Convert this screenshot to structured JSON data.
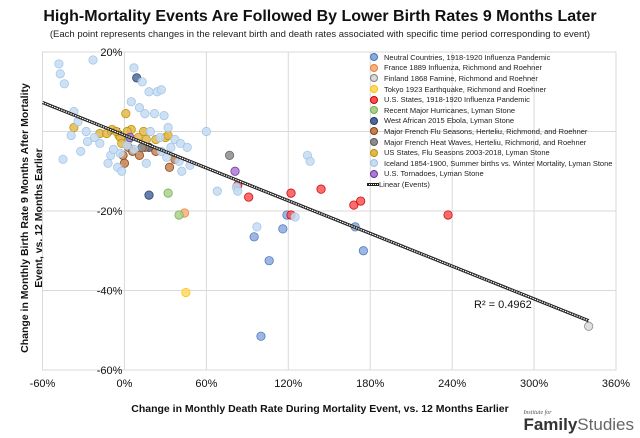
{
  "chart_data": {
    "type": "scatter",
    "title": "High-Mortality Events Are Followed By Lower Birth Rates 9 Months Later",
    "subtitle": "(Each point represents changes in the relevant birth and death rates associated with specific time period corresponding to  event)",
    "xlabel": "Change in Monthly Death Rate During Mortality Event, vs. 12 Months Earlier",
    "ylabel": "Change in Monthly Birth Rate 9 Months After Mortality Event, vs. 12 Months Earlier",
    "xlim": [
      -60,
      360
    ],
    "ylim": [
      -60,
      20
    ],
    "x_ticks": [
      "-60%",
      "0%",
      "60%",
      "120%",
      "180%",
      "240%",
      "300%",
      "360%"
    ],
    "x_tick_values": [
      -60,
      0,
      60,
      120,
      180,
      240,
      300,
      360
    ],
    "y_ticks": [
      "20%",
      "0%",
      "-20%",
      "-40%",
      "-60%"
    ],
    "y_tick_values": [
      20,
      0,
      -20,
      -40,
      -60
    ],
    "grid": true,
    "legend_position": "top-right",
    "trendline": {
      "label": "Linear (Events)",
      "x": [
        -60,
        340
      ],
      "y": [
        7.3,
        -47.6
      ],
      "r_squared_label": "R² = 0.4962"
    },
    "series": [
      {
        "name": "Neutral Countries, 1918-1920 Influenza Pandemic",
        "color": "#4472c4",
        "fill": "#8eaadb",
        "points": [
          [
            100,
            -51.5
          ],
          [
            106,
            -32.5
          ],
          [
            95,
            -26.5
          ],
          [
            116,
            -24.5
          ],
          [
            119,
            -21
          ],
          [
            169,
            -24
          ],
          [
            175,
            -30
          ]
        ]
      },
      {
        "name": "France 1889 Influenza, Richmond and Roehner",
        "color": "#ed7d31",
        "fill": "#f4b183",
        "points": [
          [
            44,
            -20.5
          ]
        ]
      },
      {
        "name": "Finland 1868 Famine, Richmond and Roehner",
        "color": "#7f7f7f",
        "fill": "#d9d9d9",
        "points": [
          [
            340,
            -49
          ]
        ]
      },
      {
        "name": "Tokyo 1923 Earthquake, Richmond and Roehner",
        "color": "#ffc000",
        "fill": "#ffd966",
        "points": [
          [
            45,
            -40.5
          ]
        ]
      },
      {
        "name": "U.S. States, 1918-1920 Influenza Pandemic",
        "color": "#c00000",
        "fill": "#ff5050",
        "points": [
          [
            83,
            -13.5
          ],
          [
            91,
            -16.5
          ],
          [
            122,
            -15.5
          ],
          [
            122,
            -21
          ],
          [
            144,
            -14.5
          ],
          [
            168,
            -18.5
          ],
          [
            173,
            -17.5
          ],
          [
            237,
            -21
          ]
        ]
      },
      {
        "name": "Recent Major Hurricanes, Lyman Stone",
        "color": "#70ad47",
        "fill": "#a9d18e",
        "points": [
          [
            32,
            -15.5
          ],
          [
            40,
            -21
          ],
          [
            3,
            -2
          ]
        ]
      },
      {
        "name": "West African 2015 Ebola, Lyman Stone",
        "color": "#1f3864",
        "fill": "#4a6a9a",
        "points": [
          [
            9,
            13.5
          ],
          [
            18,
            -16
          ],
          [
            18,
            -4
          ]
        ]
      },
      {
        "name": "Major French Flu Seasons, Herteliu, Richmond, and Roehner",
        "color": "#843c0c",
        "fill": "#c5804f",
        "points": [
          [
            3,
            -4
          ],
          [
            6,
            -5
          ],
          [
            11,
            -6
          ],
          [
            -1,
            -6
          ],
          [
            15,
            -4
          ],
          [
            23,
            -5
          ],
          [
            37,
            -7
          ],
          [
            33,
            -9
          ],
          [
            0,
            -8
          ]
        ]
      },
      {
        "name": "Major French Heat Waves, Herteliu, Richmond, and Roehner",
        "color": "#595959",
        "fill": "#8c8c8c",
        "points": [
          [
            13,
            -4
          ],
          [
            77,
            -6
          ]
        ]
      },
      {
        "name": "US States, Flu Seasons 2003-2018, Lyman Stone",
        "color": "#bf9000",
        "fill": "#e2b84b",
        "points": [
          [
            1,
            4.5
          ],
          [
            -37,
            1
          ],
          [
            -18,
            -0.5
          ],
          [
            -9,
            0.5
          ],
          [
            -13,
            -0.5
          ],
          [
            -4,
            -1
          ],
          [
            -3,
            -1.5
          ],
          [
            5,
            0.5
          ],
          [
            14,
            0
          ],
          [
            10,
            -1.5
          ],
          [
            16,
            -2
          ],
          [
            23,
            -2
          ],
          [
            30,
            -1.5
          ],
          [
            2,
            0
          ],
          [
            -6,
            0
          ],
          [
            32,
            -1
          ],
          [
            -2,
            -3
          ]
        ]
      },
      {
        "name": "Iceland 1854-1900, Summer births vs. Winter Mortality, Lyman Stone",
        "color": "#9dc3e6",
        "fill": "#c5dcf2",
        "points": [
          [
            -48,
            17
          ],
          [
            -47,
            14.5
          ],
          [
            -44,
            12
          ],
          [
            -34,
            2.5
          ],
          [
            -23,
            18
          ],
          [
            -37,
            5
          ],
          [
            -28,
            0
          ],
          [
            -27,
            -2.5
          ],
          [
            -39,
            -1
          ],
          [
            -32,
            -5
          ],
          [
            -22,
            -1.5
          ],
          [
            -18,
            -3
          ],
          [
            -45,
            -7
          ],
          [
            -12,
            -8
          ],
          [
            -10,
            -6
          ],
          [
            -5,
            -9
          ],
          [
            -2,
            -10
          ],
          [
            7,
            16
          ],
          [
            13,
            12.5
          ],
          [
            18,
            10
          ],
          [
            5,
            7.5
          ],
          [
            11,
            6
          ],
          [
            24,
            10
          ],
          [
            27,
            10.5
          ],
          [
            22,
            4.5
          ],
          [
            29,
            4
          ],
          [
            15,
            4.5
          ],
          [
            32,
            1
          ],
          [
            19,
            0
          ],
          [
            26,
            -1.5
          ],
          [
            34,
            -4
          ],
          [
            37,
            -2
          ],
          [
            41,
            -3
          ],
          [
            27,
            -5
          ],
          [
            31,
            -6.5
          ],
          [
            40,
            -7.5
          ],
          [
            46,
            -4
          ],
          [
            48,
            -8.5
          ],
          [
            16,
            -8
          ],
          [
            42,
            -10
          ],
          [
            60,
            0
          ],
          [
            82,
            -14
          ],
          [
            83,
            -15
          ],
          [
            125,
            -21.5
          ],
          [
            68,
            -15
          ],
          [
            97,
            -24
          ],
          [
            134,
            -6
          ],
          [
            136,
            -7.5
          ],
          [
            7,
            -4.5
          ],
          [
            2,
            -3.5
          ],
          [
            -8,
            -4.5
          ],
          [
            -3,
            -5.5
          ]
        ]
      },
      {
        "name": "U.S. Tornadoes, Lyman Stone",
        "color": "#7030a0",
        "fill": "#a97bd1",
        "points": [
          [
            4,
            -1.5
          ],
          [
            81,
            -10
          ]
        ]
      }
    ]
  }
}
